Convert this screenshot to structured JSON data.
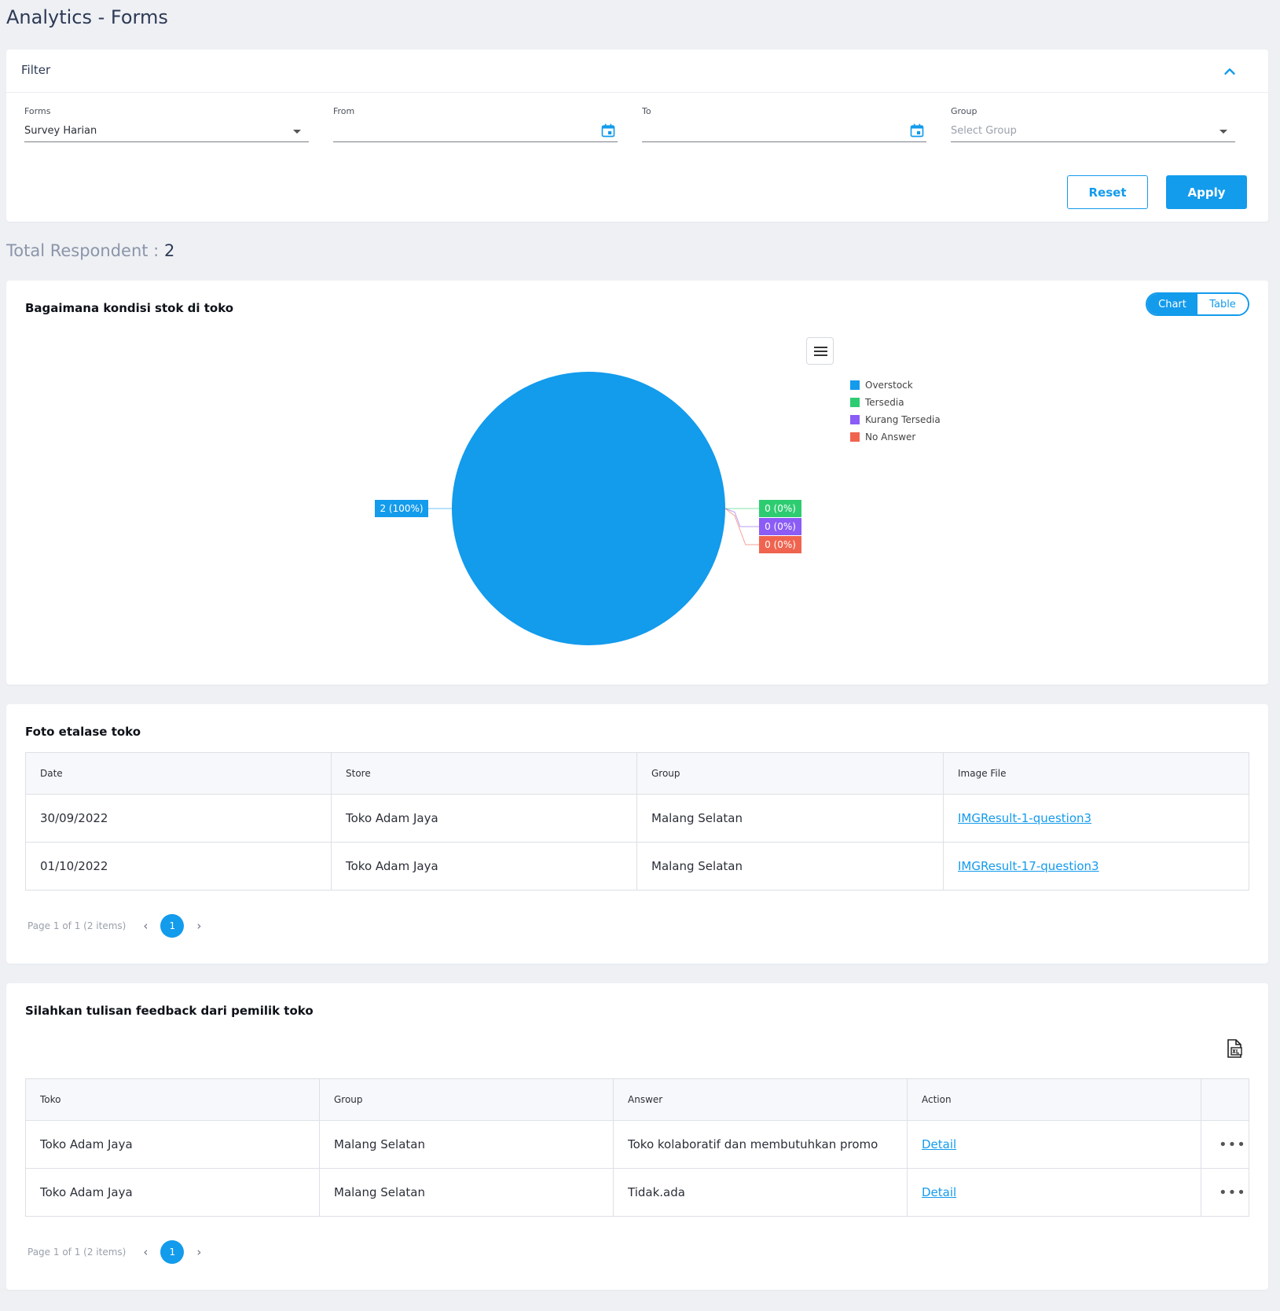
{
  "page_title": "Analytics - Forms",
  "filter": {
    "title": "Filter",
    "forms": {
      "label": "Forms",
      "value": "Survey Harian"
    },
    "from": {
      "label": "From",
      "value": ""
    },
    "to": {
      "label": "To",
      "value": ""
    },
    "group": {
      "label": "Group",
      "placeholder": "Select Group"
    },
    "reset_label": "Reset",
    "apply_label": "Apply"
  },
  "total_respondent": {
    "label": "Total Respondent :",
    "value": "2"
  },
  "chart_section": {
    "title": "Bagaimana kondisi stok di toko",
    "toggle": {
      "chart_label": "Chart",
      "table_label": "Table",
      "active": "Chart"
    }
  },
  "chart_data": {
    "type": "pie",
    "title": "Bagaimana kondisi stok di toko",
    "legend_position": "top-right",
    "slices": [
      {
        "label": "Overstock",
        "value": 2,
        "percent": 100,
        "color": "#139bec",
        "data_label": "2 (100%)"
      },
      {
        "label": "Tersedia",
        "value": 0,
        "percent": 0,
        "color": "#2ecc71",
        "data_label": "0 (0%)"
      },
      {
        "label": "Kurang Tersedia",
        "value": 0,
        "percent": 0,
        "color": "#8b5cf6",
        "data_label": "0 (0%)"
      },
      {
        "label": "No Answer",
        "value": 0,
        "percent": 0,
        "color": "#f0644f",
        "data_label": "0 (0%)"
      }
    ]
  },
  "photo_section": {
    "title": "Foto etalase toko",
    "columns": [
      "Date",
      "Store",
      "Group",
      "Image File"
    ],
    "rows": [
      {
        "date": "30/09/2022",
        "store": "Toko Adam Jaya",
        "group": "Malang Selatan",
        "image_file": "IMGResult-1-question3"
      },
      {
        "date": "01/10/2022",
        "store": "Toko Adam Jaya",
        "group": "Malang Selatan",
        "image_file": "IMGResult-17-question3"
      }
    ],
    "pager": {
      "summary": "Page 1 of 1 (2 items)",
      "current_page": "1"
    }
  },
  "feedback_section": {
    "title": "Silahkan tulisan feedback dari pemilik toko",
    "export_icon": "export-excel-icon",
    "columns": [
      "Toko",
      "Group",
      "Answer",
      "Action",
      ""
    ],
    "rows": [
      {
        "toko": "Toko Adam Jaya",
        "group": "Malang Selatan",
        "answer": "Toko kolaboratif dan membutuhkan promo",
        "action": "Detail"
      },
      {
        "toko": "Toko Adam Jaya",
        "group": "Malang Selatan",
        "answer": "Tidak.ada",
        "action": "Detail"
      }
    ],
    "pager": {
      "summary": "Page 1 of 1 (2 items)",
      "current_page": "1"
    }
  },
  "colors": {
    "accent": "#139bec"
  }
}
